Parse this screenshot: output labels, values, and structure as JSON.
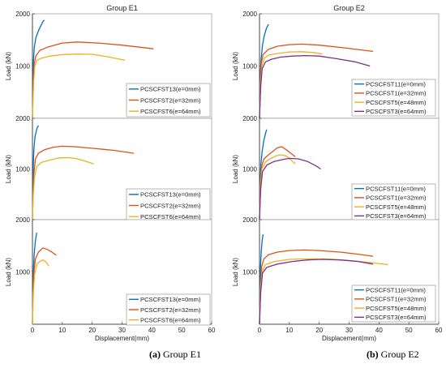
{
  "captions": {
    "a_letter": "(a)",
    "a_text": " Group E1",
    "b_letter": "(b)",
    "b_text": " Group E2"
  },
  "colors": {
    "e0": "#0072BD",
    "e32": "#D95319",
    "e48": "#EDB120",
    "e64": "#7E2F8E",
    "axis": "#262626",
    "frame": "#a6a6a6"
  },
  "chart_data": [
    {
      "type": "line",
      "group": "E1",
      "title": "Group E1",
      "ylabel": "Load (kN)",
      "xlabel": "",
      "xlim": [
        0,
        60
      ],
      "ylim": [
        0,
        2000
      ],
      "yticks": [
        "1000",
        "2000"
      ],
      "xticks": [],
      "grid": false,
      "legend": "bottom-right",
      "series": [
        {
          "name": "PCSCFST13(e=0mm)",
          "color": "e0",
          "points": [
            [
              0,
              0
            ],
            [
              0.15,
              600
            ],
            [
              0.3,
              1050
            ],
            [
              0.6,
              1350
            ],
            [
              1.2,
              1550
            ],
            [
              2.2,
              1700
            ],
            [
              3.5,
              1850
            ],
            [
              4,
              1880
            ]
          ]
        },
        {
          "name": "PCSCFST2(e=32mm)",
          "color": "e32",
          "points": [
            [
              0,
              0
            ],
            [
              0.3,
              700
            ],
            [
              0.6,
              1050
            ],
            [
              1.2,
              1200
            ],
            [
              2.5,
              1300
            ],
            [
              5,
              1360
            ],
            [
              10,
              1440
            ],
            [
              15,
              1460
            ],
            [
              22,
              1440
            ],
            [
              30,
              1400
            ],
            [
              40.5,
              1330
            ]
          ]
        },
        {
          "name": "PCSCFST6(e=64mm)",
          "color": "e64_alt",
          "points": [
            [
              0,
              0
            ],
            [
              0.4,
              700
            ],
            [
              0.8,
              1000
            ],
            [
              1.5,
              1110
            ],
            [
              3,
              1150
            ],
            [
              6,
              1190
            ],
            [
              10,
              1220
            ],
            [
              15,
              1230
            ],
            [
              20,
              1225
            ],
            [
              25,
              1180
            ],
            [
              31,
              1110
            ]
          ]
        }
      ]
    },
    {
      "type": "line",
      "group": "E1",
      "title": "",
      "ylabel": "Load (kN)",
      "xlabel": "",
      "xlim": [
        0,
        60
      ],
      "ylim": [
        0,
        2000
      ],
      "yticks": [
        "1000",
        "2000"
      ],
      "xticks": [],
      "grid": false,
      "legend": "bottom-right",
      "series": [
        {
          "name": "PCSCFST13(e=0mm)",
          "color": "e0",
          "points": [
            [
              0,
              0
            ],
            [
              0.1,
              500
            ],
            [
              0.25,
              1000
            ],
            [
              0.5,
              1400
            ],
            [
              0.9,
              1650
            ],
            [
              1.5,
              1800
            ],
            [
              2,
              1860
            ]
          ]
        },
        {
          "name": "PCSCFST2(e=32mm)",
          "color": "e32",
          "points": [
            [
              0,
              0
            ],
            [
              0.2,
              500
            ],
            [
              0.45,
              900
            ],
            [
              1,
              1200
            ],
            [
              2,
              1310
            ],
            [
              4,
              1380
            ],
            [
              7,
              1430
            ],
            [
              10,
              1450
            ],
            [
              14,
              1440
            ],
            [
              20,
              1410
            ],
            [
              27,
              1370
            ],
            [
              34,
              1310
            ]
          ]
        },
        {
          "name": "PCSCFST6(e=64mm)",
          "color": "e64_alt",
          "points": [
            [
              0,
              0
            ],
            [
              0.3,
              500
            ],
            [
              0.7,
              850
            ],
            [
              1.5,
              1050
            ],
            [
              3,
              1130
            ],
            [
              6,
              1180
            ],
            [
              9,
              1220
            ],
            [
              12,
              1225
            ],
            [
              15,
              1200
            ],
            [
              18,
              1150
            ],
            [
              20.5,
              1100
            ]
          ]
        }
      ]
    },
    {
      "type": "line",
      "group": "E1",
      "title": "",
      "ylabel": "Load (kN)",
      "xlabel": "Displacement(mm)",
      "xlim": [
        0,
        60
      ],
      "ylim": [
        0,
        2000
      ],
      "yticks": [
        "1000",
        "2000"
      ],
      "xticks": [
        "0",
        "10",
        "20",
        "30",
        "40",
        "50",
        "60"
      ],
      "grid": false,
      "legend": "bottom-right",
      "series": [
        {
          "name": "PCSCFST13(e=0mm)",
          "color": "e0",
          "points": [
            [
              0,
              0
            ],
            [
              0.1,
              500
            ],
            [
              0.3,
              1000
            ],
            [
              0.6,
              1350
            ],
            [
              1,
              1600
            ],
            [
              1.4,
              1750
            ]
          ]
        },
        {
          "name": "PCSCFST2(e=32mm)",
          "color": "e32",
          "points": [
            [
              0,
              0
            ],
            [
              0.2,
              600
            ],
            [
              0.5,
              1000
            ],
            [
              1,
              1250
            ],
            [
              2,
              1380
            ],
            [
              3.5,
              1460
            ],
            [
              5,
              1430
            ],
            [
              6.5,
              1380
            ],
            [
              8,
              1320
            ]
          ]
        },
        {
          "name": "PCSCFST6(e=64mm)",
          "color": "e64_alt",
          "points": [
            [
              0,
              0
            ],
            [
              0.3,
              600
            ],
            [
              0.7,
              950
            ],
            [
              1.5,
              1150
            ],
            [
              2.5,
              1200
            ],
            [
              3.5,
              1230
            ],
            [
              4.5,
              1190
            ],
            [
              5.5,
              1110
            ]
          ]
        }
      ]
    },
    {
      "type": "line",
      "group": "E2",
      "title": "Group E2",
      "ylabel": "Load (kN)",
      "xlabel": "",
      "xlim": [
        0,
        60
      ],
      "ylim": [
        0,
        2000
      ],
      "yticks": [
        "1000",
        "2000"
      ],
      "xticks": [],
      "grid": false,
      "legend": "bottom-right",
      "series": [
        {
          "name": "PCSCFST11(e=0mm)",
          "color": "e0",
          "points": [
            [
              0,
              0
            ],
            [
              0.2,
              700
            ],
            [
              0.5,
              1100
            ],
            [
              1,
              1400
            ],
            [
              1.6,
              1580
            ],
            [
              2.3,
              1720
            ],
            [
              3,
              1800
            ]
          ]
        },
        {
          "name": "PCSCFST1(e=32mm)",
          "color": "e32",
          "points": [
            [
              0,
              0
            ],
            [
              0.3,
              700
            ],
            [
              0.6,
              1050
            ],
            [
              1.2,
              1220
            ],
            [
              3,
              1320
            ],
            [
              6,
              1380
            ],
            [
              10,
              1410
            ],
            [
              14,
              1420
            ],
            [
              20,
              1400
            ],
            [
              28,
              1350
            ],
            [
              38,
              1280
            ]
          ]
        },
        {
          "name": "PCSCFST5(e=48mm)",
          "color": "e48",
          "points": [
            [
              0,
              0
            ],
            [
              0.35,
              700
            ],
            [
              0.8,
              1000
            ],
            [
              1.6,
              1150
            ],
            [
              3,
              1210
            ],
            [
              6,
              1240
            ],
            [
              10,
              1270
            ],
            [
              14,
              1275
            ],
            [
              18,
              1260
            ],
            [
              21,
              1230
            ]
          ]
        },
        {
          "name": "PCSCFST3(e=64mm)",
          "color": "e64",
          "points": [
            [
              0,
              0
            ],
            [
              0.4,
              600
            ],
            [
              0.9,
              950
            ],
            [
              2,
              1080
            ],
            [
              4,
              1130
            ],
            [
              7,
              1170
            ],
            [
              11,
              1190
            ],
            [
              15,
              1200
            ],
            [
              20,
              1190
            ],
            [
              26,
              1140
            ],
            [
              32,
              1080
            ],
            [
              37,
              1000
            ]
          ]
        }
      ]
    },
    {
      "type": "line",
      "group": "E2",
      "title": "",
      "ylabel": "Load (kN)",
      "xlabel": "",
      "xlim": [
        0,
        60
      ],
      "ylim": [
        0,
        2000
      ],
      "yticks": [
        "1000",
        "2000"
      ],
      "xticks": [],
      "grid": false,
      "legend": "bottom-right",
      "series": [
        {
          "name": "PCSCFST11(e=0mm)",
          "color": "e0",
          "points": [
            [
              0,
              0
            ],
            [
              0.2,
              700
            ],
            [
              0.5,
              1100
            ],
            [
              0.9,
              1350
            ],
            [
              1.4,
              1550
            ],
            [
              2,
              1700
            ],
            [
              2.4,
              1780
            ]
          ]
        },
        {
          "name": "PCSCFST1(e=32mm)",
          "color": "e32",
          "points": [
            [
              0,
              0
            ],
            [
              0.3,
              700
            ],
            [
              0.7,
              1050
            ],
            [
              1.5,
              1200
            ],
            [
              3,
              1280
            ],
            [
              4.5,
              1350
            ],
            [
              6,
              1420
            ],
            [
              7.5,
              1440
            ],
            [
              9,
              1380
            ],
            [
              10.5,
              1310
            ],
            [
              12,
              1240
            ]
          ]
        },
        {
          "name": "PCSCFST5(e=48mm)",
          "color": "e48",
          "points": [
            [
              0,
              0
            ],
            [
              0.35,
              700
            ],
            [
              0.8,
              1000
            ],
            [
              2,
              1140
            ],
            [
              3.5,
              1200
            ],
            [
              5.5,
              1260
            ],
            [
              7,
              1280
            ],
            [
              9,
              1260
            ],
            [
              10.5,
              1180
            ],
            [
              12,
              1100
            ]
          ]
        },
        {
          "name": "PCSCFST3(e=64mm)",
          "color": "e64",
          "points": [
            [
              0,
              0
            ],
            [
              0.4,
              600
            ],
            [
              1,
              950
            ],
            [
              2.5,
              1080
            ],
            [
              5,
              1150
            ],
            [
              8,
              1190
            ],
            [
              10,
              1210
            ],
            [
              13,
              1200
            ],
            [
              16,
              1150
            ],
            [
              19,
              1060
            ],
            [
              20.5,
              1000
            ]
          ]
        }
      ]
    },
    {
      "type": "line",
      "group": "E2",
      "title": "",
      "ylabel": "Load (kN)",
      "xlabel": "Displacement(mm)",
      "xlim": [
        0,
        60
      ],
      "ylim": [
        0,
        2000
      ],
      "yticks": [
        "1000",
        "2000"
      ],
      "xticks": [
        "0",
        "10",
        "20",
        "30",
        "40",
        "50",
        "60"
      ],
      "grid": false,
      "legend": "bottom-right",
      "series": [
        {
          "name": "PCSCFST11(e=0mm)",
          "color": "e0",
          "points": [
            [
              0,
              0
            ],
            [
              0.1,
              600
            ],
            [
              0.3,
              1050
            ],
            [
              0.6,
              1400
            ],
            [
              0.9,
              1600
            ],
            [
              1.2,
              1720
            ]
          ]
        },
        {
          "name": "PCSCFST1(e=32mm)",
          "color": "e32",
          "points": [
            [
              0,
              0
            ],
            [
              0.3,
              700
            ],
            [
              0.7,
              1100
            ],
            [
              1.5,
              1250
            ],
            [
              3,
              1330
            ],
            [
              6,
              1380
            ],
            [
              10,
              1410
            ],
            [
              15,
              1420
            ],
            [
              20,
              1410
            ],
            [
              27,
              1380
            ],
            [
              33,
              1340
            ],
            [
              38,
              1300
            ]
          ]
        },
        {
          "name": "PCSCFST5(e=48mm)",
          "color": "e48",
          "points": [
            [
              0,
              0
            ],
            [
              0.35,
              700
            ],
            [
              0.9,
              1020
            ],
            [
              2,
              1140
            ],
            [
              5,
              1200
            ],
            [
              10,
              1240
            ],
            [
              15,
              1250
            ],
            [
              22,
              1250
            ],
            [
              30,
              1220
            ],
            [
              37,
              1180
            ],
            [
              43,
              1140
            ]
          ]
        },
        {
          "name": "PCSCFST3(e=64mm)",
          "color": "e64",
          "points": [
            [
              0,
              0
            ],
            [
              0.4,
              600
            ],
            [
              1,
              980
            ],
            [
              2.5,
              1090
            ],
            [
              6,
              1150
            ],
            [
              11,
              1200
            ],
            [
              16,
              1230
            ],
            [
              21,
              1240
            ],
            [
              27,
              1230
            ],
            [
              33,
              1200
            ],
            [
              38,
              1150
            ]
          ]
        }
      ]
    }
  ]
}
